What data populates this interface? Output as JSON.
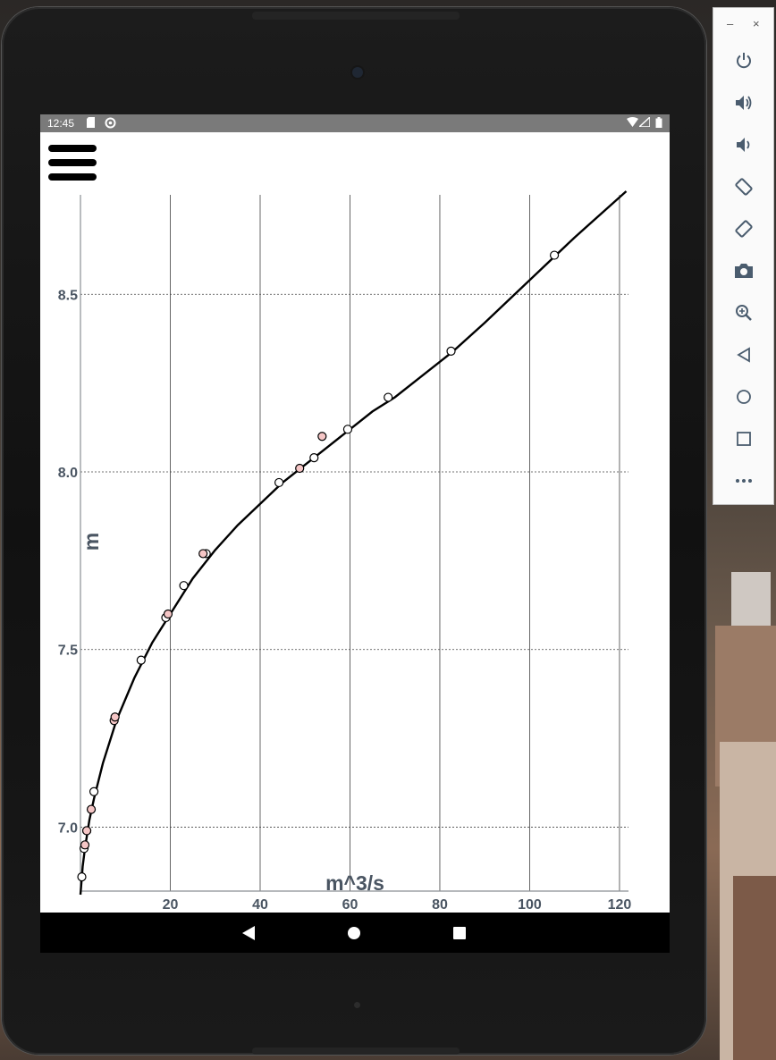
{
  "status_bar": {
    "time": "12:45"
  },
  "app": {
    "menu_icon": "hamburger-icon"
  },
  "chart_data": {
    "type": "scatter",
    "xlabel": "m^3/s",
    "ylabel": "m",
    "xlim": [
      0,
      122
    ],
    "ylim": [
      6.82,
      8.78
    ],
    "x_ticks": [
      "20",
      "40",
      "60",
      "80",
      "100",
      "120"
    ],
    "x_tick_values": [
      20,
      40,
      60,
      80,
      100,
      120
    ],
    "y_ticks": [
      "7.0",
      "7.5",
      "8.0",
      "8.5"
    ],
    "y_tick_values": [
      7.0,
      7.5,
      8.0,
      8.5
    ],
    "grid": true,
    "series": [
      {
        "marker_color": "#ffffff",
        "points": [
          [
            0.3,
            6.86
          ],
          [
            0.8,
            6.94
          ],
          [
            1.4,
            6.99
          ],
          [
            3.0,
            7.1
          ],
          [
            13.5,
            7.47
          ],
          [
            19.0,
            7.59
          ],
          [
            23.0,
            7.68
          ],
          [
            28.0,
            7.77
          ],
          [
            44.2,
            7.97
          ],
          [
            52.0,
            8.04
          ],
          [
            59.5,
            8.12
          ],
          [
            68.5,
            8.21
          ],
          [
            82.5,
            8.34
          ],
          [
            105.5,
            8.61
          ]
        ]
      },
      {
        "marker_color": "#f5c6c6",
        "points": [
          [
            1.0,
            6.95
          ],
          [
            1.4,
            6.99
          ],
          [
            2.4,
            7.05
          ],
          [
            7.5,
            7.3
          ],
          [
            7.7,
            7.31
          ],
          [
            19.5,
            7.6
          ],
          [
            27.3,
            7.77
          ],
          [
            48.8,
            8.01
          ],
          [
            53.8,
            8.1
          ]
        ]
      }
    ],
    "curve": [
      [
        0,
        6.81
      ],
      [
        0.5,
        6.89
      ],
      [
        1,
        6.94
      ],
      [
        2,
        7.02
      ],
      [
        3,
        7.08
      ],
      [
        5,
        7.18
      ],
      [
        8,
        7.3
      ],
      [
        12,
        7.42
      ],
      [
        16,
        7.52
      ],
      [
        20,
        7.6
      ],
      [
        25,
        7.7
      ],
      [
        30,
        7.78
      ],
      [
        35,
        7.85
      ],
      [
        40,
        7.91
      ],
      [
        45,
        7.97
      ],
      [
        50,
        8.02
      ],
      [
        55,
        8.07
      ],
      [
        60,
        8.12
      ],
      [
        65,
        8.17
      ],
      [
        70,
        8.21
      ],
      [
        75,
        8.26
      ],
      [
        80,
        8.31
      ],
      [
        83,
        8.34
      ],
      [
        90,
        8.42
      ],
      [
        100,
        8.54
      ],
      [
        110,
        8.66
      ],
      [
        121.5,
        8.79
      ]
    ]
  },
  "nav": {
    "back_icon": "back-triangle-icon",
    "home_icon": "home-circle-icon",
    "recents_icon": "recents-square-icon"
  },
  "emulator_panel": {
    "minimize": "–",
    "close": "×",
    "buttons": [
      "power-icon",
      "volume-up-icon",
      "volume-down-icon",
      "rotate-left-icon",
      "rotate-right-icon",
      "camera-icon",
      "zoom-icon",
      "back-icon",
      "home-icon",
      "overview-icon",
      "more-icon"
    ]
  }
}
